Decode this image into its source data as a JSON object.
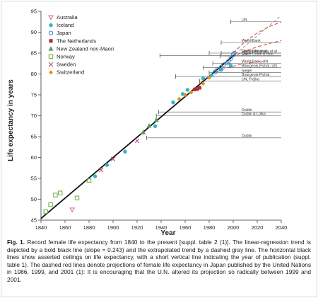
{
  "chart_data": {
    "type": "scatter",
    "title": "",
    "xlabel": "Year",
    "ylabel": "Life expectancy in years",
    "xlim": [
      1840,
      2040
    ],
    "ylim": [
      45,
      95
    ],
    "xticks": [
      1840,
      1860,
      1880,
      1900,
      1920,
      1940,
      1960,
      1980,
      2000,
      2020,
      2040
    ],
    "yticks": [
      45,
      50,
      55,
      60,
      65,
      70,
      75,
      80,
      85,
      90,
      95
    ],
    "grid": false,
    "legend_position": "top-left",
    "series": [
      {
        "name": "Australia",
        "marker": "triangle-down",
        "color": "#d9608a",
        "x": [
          1866
        ],
        "y": [
          47.5
        ]
      },
      {
        "name": "Iceland",
        "marker": "circle",
        "color": "#2fb5c6",
        "x": [
          1885,
          1895,
          1910,
          1935,
          1950,
          1958,
          1962,
          1975,
          1982,
          1990,
          1998
        ],
        "y": [
          55.5,
          58.2,
          61.4,
          67.5,
          73.2,
          75.2,
          76.2,
          78.9,
          79.7,
          81.0,
          82.0
        ]
      },
      {
        "name": "Japan",
        "marker": "circle-open",
        "color": "#3c7ebf",
        "x": [
          1985,
          1987,
          1990,
          1992,
          1995,
          1996,
          1998,
          2000,
          2001
        ],
        "y": [
          80.5,
          81.1,
          81.6,
          82.2,
          82.6,
          83.0,
          83.7,
          84.6,
          85.0
        ]
      },
      {
        "name": "The Netherlands",
        "marker": "square",
        "color": "#b32d2d",
        "x": [
          1968,
          1970,
          1972
        ],
        "y": [
          76.3,
          76.4,
          76.7
        ]
      },
      {
        "name": "New Zealand non-Maori",
        "marker": "triangle-up",
        "color": "#5aa05a",
        "x": [
          1925,
          1930,
          1936
        ],
        "y": [
          66.0,
          67.6,
          69.0
        ]
      },
      {
        "name": "Norway",
        "marker": "square-open",
        "color": "#6aaa3a",
        "x": [
          1844,
          1848,
          1852,
          1856,
          1870,
          1880
        ],
        "y": [
          47.0,
          48.7,
          51.0,
          51.5,
          50.3,
          54.5
        ]
      },
      {
        "name": "Sweden",
        "marker": "x",
        "color": "#c45a8a",
        "x": [
          1890,
          1900,
          1920
        ],
        "y": [
          57.0,
          59.6,
          64.0
        ]
      },
      {
        "name": "Switzerland",
        "marker": "diamond",
        "color": "#e0901e",
        "x": [
          1955,
          1960,
          1965,
          1975,
          1980
        ],
        "y": [
          74.0,
          75.0,
          75.6,
          77.7,
          79.1
        ]
      }
    ],
    "regression_line": {
      "slope": 0.243,
      "x": [
        1840,
        2002
      ],
      "y": [
        45.4,
        84.8
      ]
    },
    "extrapolated_trend": {
      "style": "dashed gray",
      "x": [
        2002,
        2040
      ],
      "y": [
        84.8,
        94.0
      ]
    },
    "un_projections": {
      "style": "dashed red",
      "curves": [
        {
          "x": [
            2000,
            2010,
            2020,
            2030,
            2040
          ],
          "y": [
            85.0,
            87.8,
            89.8,
            91.3,
            92.5
          ]
        },
        {
          "x": [
            1999,
            2010,
            2020,
            2030,
            2040
          ],
          "y": [
            84.0,
            85.5,
            86.5,
            87.3,
            88.0
          ]
        },
        {
          "x": [
            1986,
            1995,
            2005,
            2015,
            2025
          ],
          "y": [
            80.5,
            81.5,
            82.2,
            82.7,
            83.0
          ]
        }
      ]
    },
    "ceilings": [
      {
        "label": "UN",
        "value": 92.5,
        "x_start": 1998,
        "x_end": 2040
      },
      {
        "label": "World Bank",
        "value": 87.5,
        "x_start": 1990,
        "x_end": 2040
      },
      {
        "label": "Olshansky et al",
        "value": 85.0,
        "x_start": 1990,
        "x_end": 2040
      },
      {
        "label": "UN",
        "value": 84.3,
        "x_start": 1989,
        "x_end": 2040
      },
      {
        "label": "Fries, Olshansky et al",
        "value": 85.0,
        "x_start": 1980,
        "x_end": 2040
      },
      {
        "label": "Coale   Coale & Guo",
        "value": 84.4,
        "x_start": 1939,
        "x_end": 2040
      },
      {
        "label": "World Bank, UN",
        "value": 82.5,
        "x_start": 1983,
        "x_end": 2040
      },
      {
        "label": "Bourgeois-Pichat, UN",
        "value": 81.5,
        "x_start": 1975,
        "x_end": 2040
      },
      {
        "label": "Siegel",
        "value": 80.3,
        "x_start": 1980,
        "x_end": 2040
      },
      {
        "label": "Bourgeois-Pichat",
        "value": 79.4,
        "x_start": 1952,
        "x_end": 2040
      },
      {
        "label": "UN, Frejka",
        "value": 78.3,
        "x_start": 1972,
        "x_end": 2040
      },
      {
        "label": "Dublin",
        "value": 70.9,
        "x_start": 1938,
        "x_end": 2040
      },
      {
        "label": "Dublin & Lotka",
        "value": 70.0,
        "x_start": 1936,
        "x_end": 2040
      },
      {
        "label": "Dublin",
        "value": 64.7,
        "x_start": 1928,
        "x_end": 2040
      }
    ]
  },
  "caption": {
    "lead": "Fig. 1.",
    "text": " Record female life expectancy from 1840 to the present [suppl. table 2 (1)]. The linear-regression trend is depicted by a bold black line (slope = 0.243) and the extrapolated trend by a dashed gray line. The horizontal black lines show asserted ceilings on life expectancy, with a short vertical line indicating the year of publication (suppl. table 1). The dashed red lines denote projections of female life expectancy in Japan published by the United Nations in 1986, 1999, and 2001 (1): It is encouraging that the U.N. altered its projection so radically between 1999 and 2001."
  }
}
